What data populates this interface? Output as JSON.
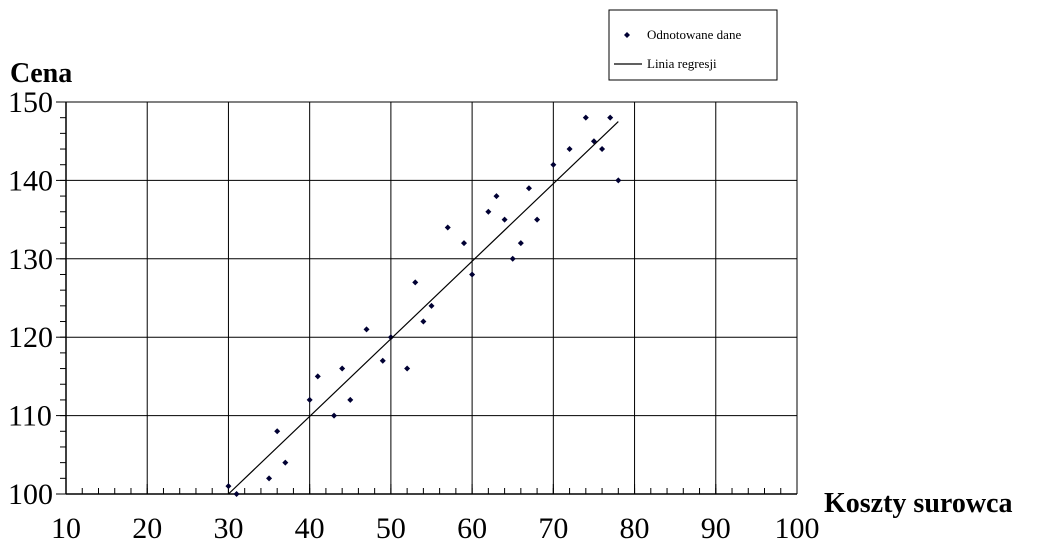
{
  "chart_data": {
    "type": "scatter",
    "title": "",
    "xlabel": "Koszty surowca",
    "ylabel": "Cena",
    "xlim": [
      10,
      100
    ],
    "ylim": [
      100,
      150
    ],
    "x_ticks": [
      10,
      20,
      30,
      40,
      50,
      60,
      70,
      80,
      90,
      100
    ],
    "y_ticks": [
      100,
      110,
      120,
      130,
      140,
      150
    ],
    "grid": true,
    "legend_position": "top-right",
    "series": [
      {
        "name": "Odnotowane dane",
        "kind": "points",
        "color": "#000033",
        "points": [
          [
            30,
            101
          ],
          [
            31,
            100
          ],
          [
            35,
            102
          ],
          [
            36,
            108
          ],
          [
            37,
            104
          ],
          [
            40,
            112
          ],
          [
            41,
            115
          ],
          [
            43,
            110
          ],
          [
            44,
            116
          ],
          [
            45,
            112
          ],
          [
            47,
            121
          ],
          [
            49,
            117
          ],
          [
            50,
            120
          ],
          [
            52,
            116
          ],
          [
            53,
            127
          ],
          [
            54,
            122
          ],
          [
            55,
            124
          ],
          [
            57,
            134
          ],
          [
            59,
            132
          ],
          [
            60,
            128
          ],
          [
            62,
            136
          ],
          [
            63,
            138
          ],
          [
            64,
            135
          ],
          [
            65,
            130
          ],
          [
            66,
            132
          ],
          [
            67,
            139
          ],
          [
            68,
            135
          ],
          [
            70,
            142
          ],
          [
            72,
            144
          ],
          [
            74,
            148
          ],
          [
            75,
            145
          ],
          [
            76,
            144
          ],
          [
            77,
            148
          ],
          [
            78,
            140
          ]
        ]
      },
      {
        "name": "Linia regresji",
        "kind": "line",
        "color": "#000000",
        "points": [
          [
            30,
            100
          ],
          [
            78,
            147.5
          ]
        ]
      }
    ]
  }
}
